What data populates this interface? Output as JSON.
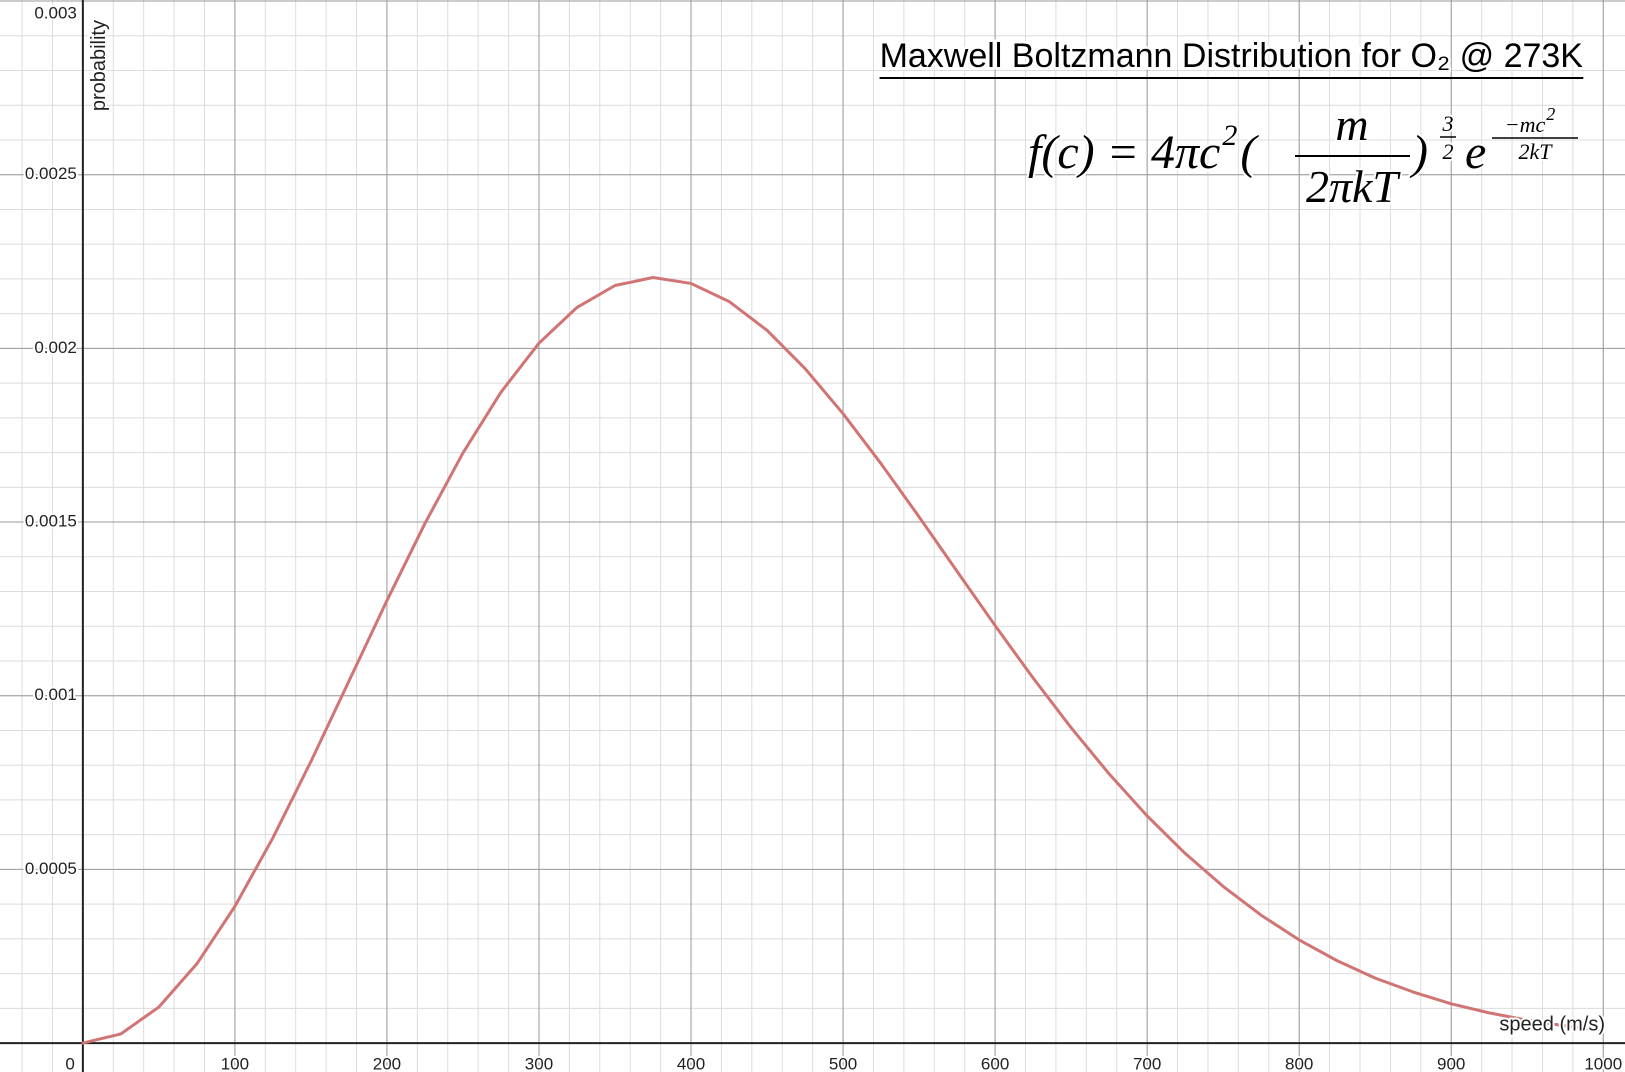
{
  "chart_data": {
    "type": "line",
    "title": "Maxwell Boltzmann Distribution for O₂ @ 273K",
    "formula": {
      "lhs": "f(c) = 4πc",
      "lhs_exp": "2",
      "open": "(",
      "num": "m",
      "den": "2πkT",
      "close": ")",
      "pow_num": "3",
      "pow_den": "2",
      "base": "e",
      "exp_num": "−mc",
      "exp_num_exp": "2",
      "exp_den": "2kT"
    },
    "x_label": "speed (m/s)",
    "y_label": "probability",
    "color": "#d07474",
    "x": [
      0,
      25,
      50,
      75,
      100,
      125,
      150,
      175,
      200,
      225,
      250,
      275,
      300,
      325,
      350,
      375,
      400,
      425,
      450,
      475,
      500,
      525,
      550,
      575,
      600,
      625,
      650,
      675,
      700,
      725,
      750,
      775,
      800,
      825,
      850,
      875,
      900,
      925,
      950,
      975,
      1000
    ],
    "values": [
      0,
      2.63e-05,
      0.0001037,
      0.0002283,
      0.0003935,
      0.0005909,
      0.0008106,
      0.001042,
      0.001274,
      0.001496,
      0.001699,
      0.001874,
      0.002015,
      0.002118,
      0.002181,
      0.002204,
      0.002187,
      0.002135,
      0.002052,
      0.001942,
      0.001812,
      0.001668,
      0.001515,
      0.001358,
      0.001202,
      0.001051,
      0.000908,
      0.000775,
      0.000654,
      0.000546,
      0.000451,
      0.000368,
      0.000297,
      0.000237,
      0.000187,
      0.000147,
      0.000113,
      8.69e-05,
      6.59e-05,
      4.94e-05,
      3.67e-05
    ],
    "xlim": [
      -54.5,
      1014.3
    ],
    "ylim": [
      -8.33e-05,
      0.003003
    ],
    "xticks": [
      0,
      100,
      200,
      300,
      400,
      500,
      600,
      700,
      800,
      900,
      1000
    ],
    "yticks": [
      0.0005,
      0.001,
      0.0015,
      0.002,
      0.0025,
      0.003
    ],
    "grid": true,
    "minor_grid": 5
  }
}
